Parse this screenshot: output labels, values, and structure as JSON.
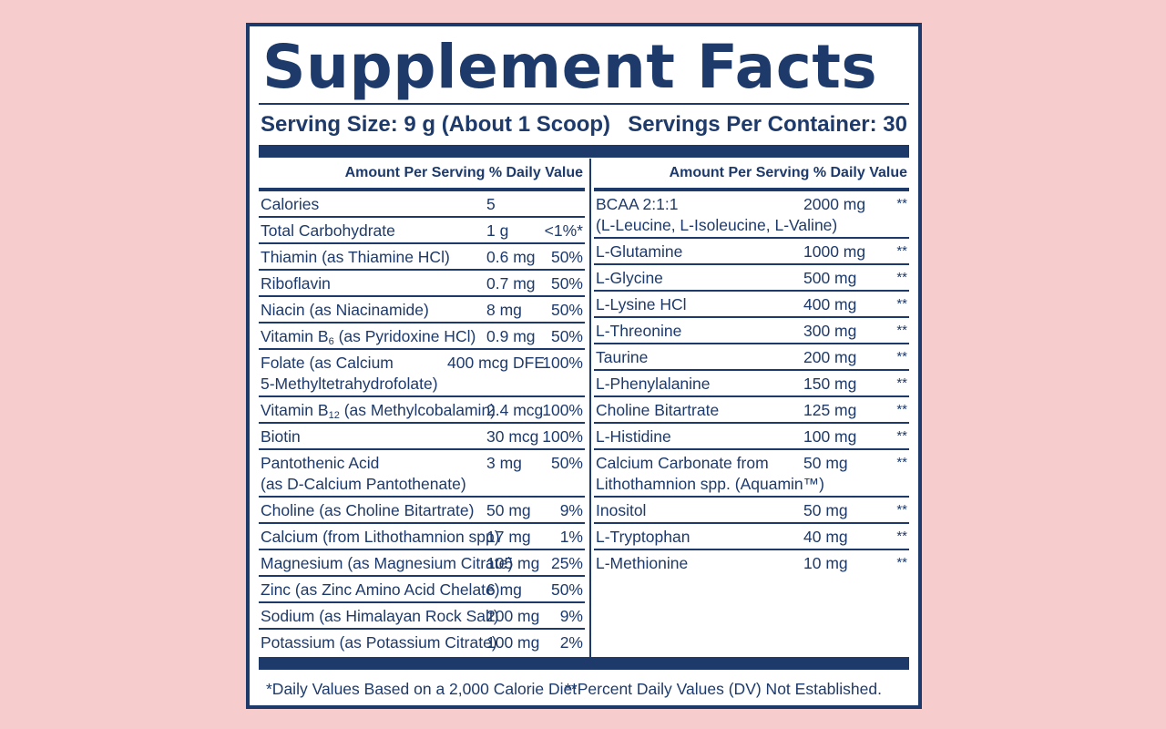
{
  "title": "Supplement Facts",
  "serving_size": "Serving Size: 9 g (About 1 Scoop)",
  "servings_per_container": "Servings Per Container: 30",
  "column_header": "Amount Per Serving  % Daily Value",
  "left_rows": [
    {
      "name": "Calories",
      "amount": "5",
      "dv": ""
    },
    {
      "name": "Total Carbohydrate",
      "amount": "1 g",
      "dv": "<1%*"
    },
    {
      "name": "Thiamin (as Thiamine HCl)",
      "amount": "0.6 mg",
      "dv": "50%"
    },
    {
      "name": "Riboflavin",
      "amount": "0.7 mg",
      "dv": "50%"
    },
    {
      "name": "Niacin (as Niacinamide)",
      "amount": "8 mg",
      "dv": "50%"
    },
    {
      "name_pre": "Vitamin B",
      "name_sub": "6",
      "name_post": " (as Pyridoxine HCl)",
      "amount": "0.9 mg",
      "dv": "50%"
    },
    {
      "name": "Folate (as Calcium",
      "name2": "5-Methyltetrahydrofolate)",
      "amount": "400 mcg DFE",
      "dv": "100%"
    },
    {
      "name_pre": "Vitamin B",
      "name_sub": "12",
      "name_post": " (as Methylcobalamin)",
      "amount": "2.4 mcg",
      "dv": "100%"
    },
    {
      "name": "Biotin",
      "amount": "30 mcg",
      "dv": "100%"
    },
    {
      "name": "Pantothenic Acid",
      "name2": "(as D-Calcium Pantothenate)",
      "amount": "3 mg",
      "dv": "50%"
    },
    {
      "name": "Choline (as Choline Bitartrate)",
      "amount": "50 mg",
      "dv": "9%"
    },
    {
      "name": "Calcium (from Lithothamnion spp)",
      "amount": "17 mg",
      "dv": "1%"
    },
    {
      "name": "Magnesium (as Magnesium Citrate)",
      "amount": "105 mg",
      "dv": "25%"
    },
    {
      "name": "Zinc (as Zinc Amino Acid Chelate)",
      "amount": "6 mg",
      "dv": "50%"
    },
    {
      "name": "Sodium (as Himalayan Rock Salt)",
      "amount": "200 mg",
      "dv": "9%"
    },
    {
      "name": "Potassium (as Potassium Citrate)",
      "amount": "100 mg",
      "dv": "2%"
    }
  ],
  "right_rows": [
    {
      "name": "BCAA 2:1:1",
      "name2": "(L-Leucine, L-Isoleucine, L-Valine)",
      "amount": "2000 mg",
      "dv": "**"
    },
    {
      "name": "L-Glutamine",
      "amount": "1000 mg",
      "dv": "**"
    },
    {
      "name": "L-Glycine",
      "amount": "500 mg",
      "dv": "**"
    },
    {
      "name": "L-Lysine HCl",
      "amount": "400 mg",
      "dv": "**"
    },
    {
      "name": "L-Threonine",
      "amount": "300 mg",
      "dv": "**"
    },
    {
      "name": "Taurine",
      "amount": "200 mg",
      "dv": "**"
    },
    {
      "name": "L-Phenylalanine",
      "amount": "150 mg",
      "dv": "**"
    },
    {
      "name": "Choline Bitartrate",
      "amount": "125 mg",
      "dv": "**"
    },
    {
      "name": "L-Histidine",
      "amount": "100 mg",
      "dv": "**"
    },
    {
      "name": "Calcium Carbonate from",
      "name2": "Lithothamnion spp. (Aquamin™)",
      "amount": "50 mg",
      "dv": "**"
    },
    {
      "name": "Inositol",
      "amount": "50 mg",
      "dv": "**"
    },
    {
      "name": "L-Tryptophan",
      "amount": "40 mg",
      "dv": "**"
    },
    {
      "name": "L-Methionine",
      "amount": "10 mg",
      "dv": "**"
    }
  ],
  "footnote_left": "*Daily Values Based on a 2,000 Calorie Diet",
  "footnote_right": "**Percent Daily Values (DV) Not Established.",
  "colors": {
    "background": "#f6cccd",
    "ink": "#1d3a6b",
    "panel": "#ffffff"
  }
}
